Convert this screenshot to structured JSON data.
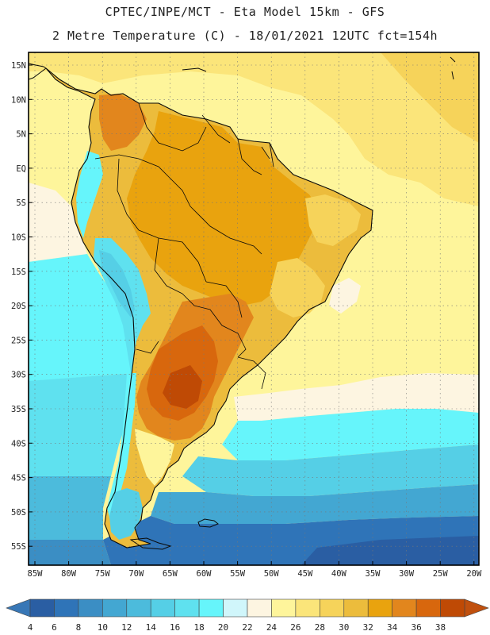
{
  "header": {
    "line1": "CPTEC/INPE/MCT -  Eta Model 15km - GFS",
    "line2": "2 Metre Temperature (C) - 18/01/2021 12UTC fct=154h"
  },
  "axes": {
    "lat_labels": [
      "15N",
      "10N",
      "5N",
      "EQ",
      "5S",
      "10S",
      "15S",
      "20S",
      "25S",
      "30S",
      "35S",
      "40S",
      "45S",
      "50S",
      "55S"
    ],
    "lon_labels": [
      "85W",
      "80W",
      "75W",
      "70W",
      "65W",
      "60W",
      "55W",
      "50W",
      "45W",
      "40W",
      "35W",
      "30W",
      "25W",
      "20W"
    ]
  },
  "colorbar": {
    "values": [
      "4",
      "6",
      "8",
      "10",
      "12",
      "14",
      "16",
      "18",
      "20",
      "22",
      "24",
      "26",
      "28",
      "30",
      "32",
      "34",
      "36",
      "38"
    ],
    "colors": [
      "#2a5ea3",
      "#2f74b8",
      "#3b8ec4",
      "#43a7d2",
      "#4cbbdc",
      "#55cfe6",
      "#5fe1ef",
      "#66f5fb",
      "#d0f6fb",
      "#fdf5e1",
      "#fef59b",
      "#fbe57a",
      "#f6d35a",
      "#ecbc3c",
      "#e9a30e",
      "#e2861d",
      "#d8670d",
      "#bf4a05"
    ],
    "low_color": "#3877b6",
    "high_color": "#c0500e"
  },
  "colors": {
    "coast": "#0a0a0a",
    "grid": "#777777",
    "frame": "#000000"
  }
}
